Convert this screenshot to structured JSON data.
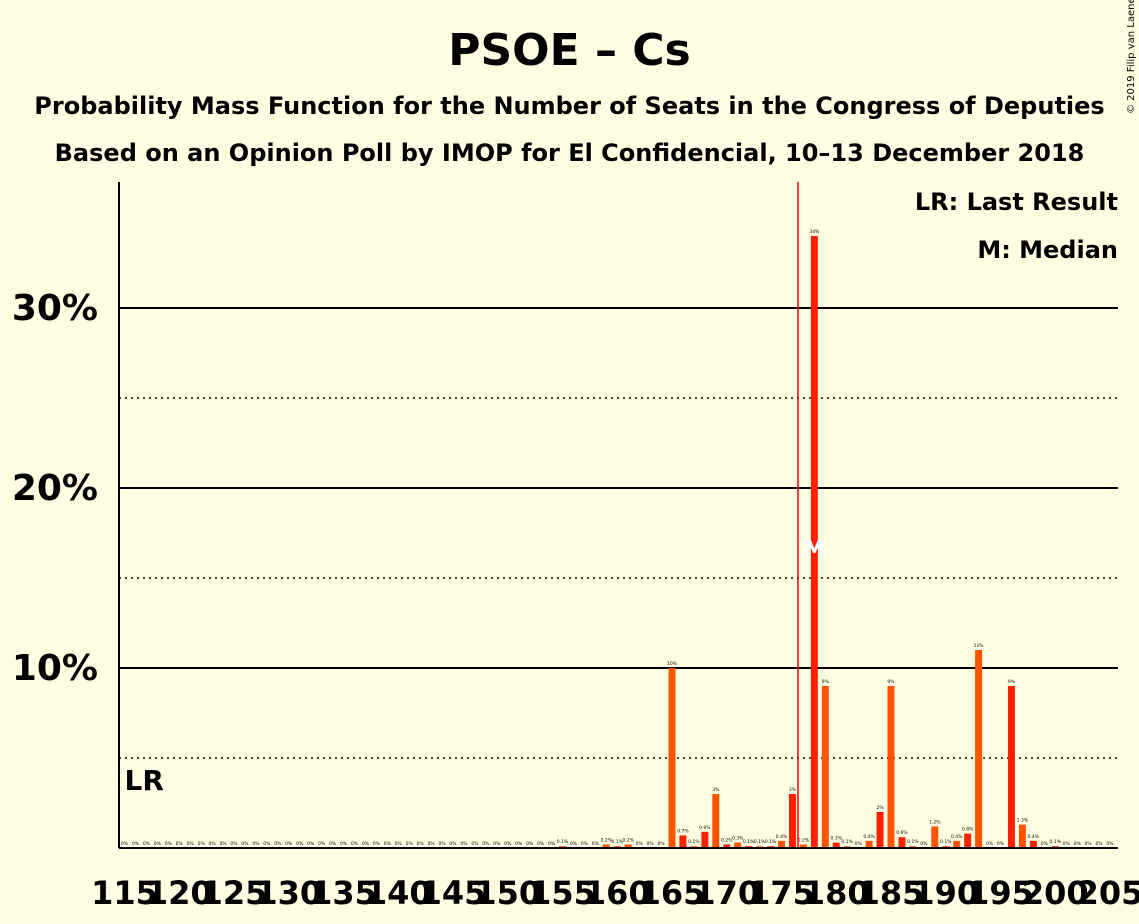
{
  "chart_data": {
    "type": "bar",
    "title": "PSOE – Cs",
    "subtitle": "Probability Mass Function for the Number of Seats in the Congress of Deputies",
    "subtitle2": "Based on an Opinion Poll by IMOP for El Confidencial, 10–13 December 2018",
    "copyright": "© 2019 Filip van Laenen",
    "legend": {
      "placement": "top-right",
      "lr": "LR: Last Result",
      "median": "M: Median"
    },
    "lr_marker": {
      "seat": 115,
      "label": "LR"
    },
    "majority_line": {
      "seat": 176
    },
    "median": {
      "seat": 178,
      "label": "M"
    },
    "ylim": [
      0,
      37
    ],
    "yticks": [
      10,
      20,
      30
    ],
    "ytick_labels": [
      "10%",
      "20%",
      "30%"
    ],
    "dotted_lines": [
      5,
      15,
      25
    ],
    "xtick_labels": [
      "115",
      "120",
      "125",
      "130",
      "135",
      "140",
      "145",
      "150",
      "155",
      "160",
      "165",
      "170",
      "175",
      "180",
      "185",
      "190",
      "195",
      "200",
      "205"
    ],
    "xtick_values": [
      115,
      120,
      125,
      130,
      135,
      140,
      145,
      150,
      155,
      160,
      165,
      170,
      175,
      180,
      185,
      190,
      195,
      200,
      205
    ],
    "bars": [
      {
        "seat": 115,
        "value": 0,
        "label": "0%"
      },
      {
        "seat": 116,
        "value": 0,
        "label": "0%"
      },
      {
        "seat": 117,
        "value": 0,
        "label": "0%"
      },
      {
        "seat": 118,
        "value": 0,
        "label": "0%"
      },
      {
        "seat": 119,
        "value": 0,
        "label": "0%"
      },
      {
        "seat": 120,
        "value": 0,
        "label": "0%"
      },
      {
        "seat": 121,
        "value": 0,
        "label": "0%"
      },
      {
        "seat": 122,
        "value": 0,
        "label": "0%"
      },
      {
        "seat": 123,
        "value": 0,
        "label": "0%"
      },
      {
        "seat": 124,
        "value": 0,
        "label": "0%"
      },
      {
        "seat": 125,
        "value": 0,
        "label": "0%"
      },
      {
        "seat": 126,
        "value": 0,
        "label": "0%"
      },
      {
        "seat": 127,
        "value": 0,
        "label": "0%"
      },
      {
        "seat": 128,
        "value": 0,
        "label": "0%"
      },
      {
        "seat": 129,
        "value": 0,
        "label": "0%"
      },
      {
        "seat": 130,
        "value": 0,
        "label": "0%"
      },
      {
        "seat": 131,
        "value": 0,
        "label": "0%"
      },
      {
        "seat": 132,
        "value": 0,
        "label": "0%"
      },
      {
        "seat": 133,
        "value": 0,
        "label": "0%"
      },
      {
        "seat": 134,
        "value": 0,
        "label": "0%"
      },
      {
        "seat": 135,
        "value": 0,
        "label": "0%"
      },
      {
        "seat": 136,
        "value": 0,
        "label": "0%"
      },
      {
        "seat": 137,
        "value": 0,
        "label": "0%"
      },
      {
        "seat": 138,
        "value": 0,
        "label": "0%"
      },
      {
        "seat": 139,
        "value": 0,
        "label": "0%"
      },
      {
        "seat": 140,
        "value": 0,
        "label": "0%"
      },
      {
        "seat": 141,
        "value": 0,
        "label": "0%"
      },
      {
        "seat": 142,
        "value": 0,
        "label": "0%"
      },
      {
        "seat": 143,
        "value": 0,
        "label": "0%"
      },
      {
        "seat": 144,
        "value": 0,
        "label": "0%"
      },
      {
        "seat": 145,
        "value": 0,
        "label": "0%"
      },
      {
        "seat": 146,
        "value": 0,
        "label": "0%"
      },
      {
        "seat": 147,
        "value": 0,
        "label": "0%"
      },
      {
        "seat": 148,
        "value": 0,
        "label": "0%"
      },
      {
        "seat": 149,
        "value": 0,
        "label": "0%"
      },
      {
        "seat": 150,
        "value": 0,
        "label": "0%"
      },
      {
        "seat": 151,
        "value": 0,
        "label": "0%"
      },
      {
        "seat": 152,
        "value": 0,
        "label": "0%"
      },
      {
        "seat": 153,
        "value": 0,
        "label": "0%"
      },
      {
        "seat": 154,
        "value": 0,
        "label": "0%"
      },
      {
        "seat": 155,
        "value": 0.1,
        "label": "0.1%"
      },
      {
        "seat": 156,
        "value": 0,
        "label": "0%"
      },
      {
        "seat": 157,
        "value": 0,
        "label": "0%"
      },
      {
        "seat": 158,
        "value": 0,
        "label": "0%"
      },
      {
        "seat": 159,
        "value": 0.2,
        "label": "0.2%"
      },
      {
        "seat": 160,
        "value": 0.1,
        "label": "0.1%"
      },
      {
        "seat": 161,
        "value": 0.2,
        "label": "0.2%"
      },
      {
        "seat": 162,
        "value": 0,
        "label": "0%"
      },
      {
        "seat": 163,
        "value": 0,
        "label": "0%"
      },
      {
        "seat": 164,
        "value": 0,
        "label": "0%"
      },
      {
        "seat": 165,
        "value": 10,
        "label": "10%"
      },
      {
        "seat": 166,
        "value": 0.7,
        "label": "0.7%"
      },
      {
        "seat": 167,
        "value": 0.1,
        "label": "0.1%"
      },
      {
        "seat": 168,
        "value": 0.9,
        "label": "0.9%"
      },
      {
        "seat": 169,
        "value": 3,
        "label": "3%"
      },
      {
        "seat": 170,
        "value": 0.2,
        "label": "0.2%"
      },
      {
        "seat": 171,
        "value": 0.3,
        "label": "0.3%"
      },
      {
        "seat": 172,
        "value": 0.1,
        "label": "0.1%"
      },
      {
        "seat": 173,
        "value": 0.1,
        "label": "0.1%"
      },
      {
        "seat": 174,
        "value": 0.1,
        "label": "0.1%"
      },
      {
        "seat": 175,
        "value": 0.4,
        "label": "0.4%"
      },
      {
        "seat": 176,
        "value": 3,
        "label": "3%"
      },
      {
        "seat": 177,
        "value": 0.2,
        "label": "0.2%"
      },
      {
        "seat": 178,
        "value": 34,
        "label": "34%"
      },
      {
        "seat": 179,
        "value": 9,
        "label": "9%"
      },
      {
        "seat": 180,
        "value": 0.3,
        "label": "0.3%"
      },
      {
        "seat": 181,
        "value": 0.1,
        "label": "0.1%"
      },
      {
        "seat": 182,
        "value": 0,
        "label": "0%"
      },
      {
        "seat": 183,
        "value": 0.4,
        "label": "0.4%"
      },
      {
        "seat": 184,
        "value": 2,
        "label": "2%"
      },
      {
        "seat": 185,
        "value": 9,
        "label": "9%"
      },
      {
        "seat": 186,
        "value": 0.6,
        "label": "0.6%"
      },
      {
        "seat": 187,
        "value": 0.1,
        "label": "0.1%"
      },
      {
        "seat": 188,
        "value": 0,
        "label": "0%"
      },
      {
        "seat": 189,
        "value": 1.2,
        "label": "1.2%"
      },
      {
        "seat": 190,
        "value": 0.1,
        "label": "0.1%"
      },
      {
        "seat": 191,
        "value": 0.4,
        "label": "0.4%"
      },
      {
        "seat": 192,
        "value": 0.8,
        "label": "0.8%"
      },
      {
        "seat": 193,
        "value": 11,
        "label": "11%"
      },
      {
        "seat": 194,
        "value": 0,
        "label": "0%"
      },
      {
        "seat": 195,
        "value": 0,
        "label": "0%"
      },
      {
        "seat": 196,
        "value": 9,
        "label": "9%"
      },
      {
        "seat": 197,
        "value": 1.3,
        "label": "1.3%"
      },
      {
        "seat": 198,
        "value": 0.4,
        "label": "0.4%"
      },
      {
        "seat": 199,
        "value": 0,
        "label": "0%"
      },
      {
        "seat": 200,
        "value": 0.1,
        "label": "0.1%"
      },
      {
        "seat": 201,
        "value": 0,
        "label": "0%"
      },
      {
        "seat": 202,
        "value": 0,
        "label": "0%"
      },
      {
        "seat": 203,
        "value": 0,
        "label": "0%"
      },
      {
        "seat": 204,
        "value": 0,
        "label": "0%"
      },
      {
        "seat": 205,
        "value": 0,
        "label": "0%"
      }
    ],
    "colors": {
      "background": "#FFFEE3",
      "bar_main": "#FF2000",
      "bar_alt": "#FF5500",
      "majority_line": "#FF0000",
      "text": "#000000"
    }
  }
}
